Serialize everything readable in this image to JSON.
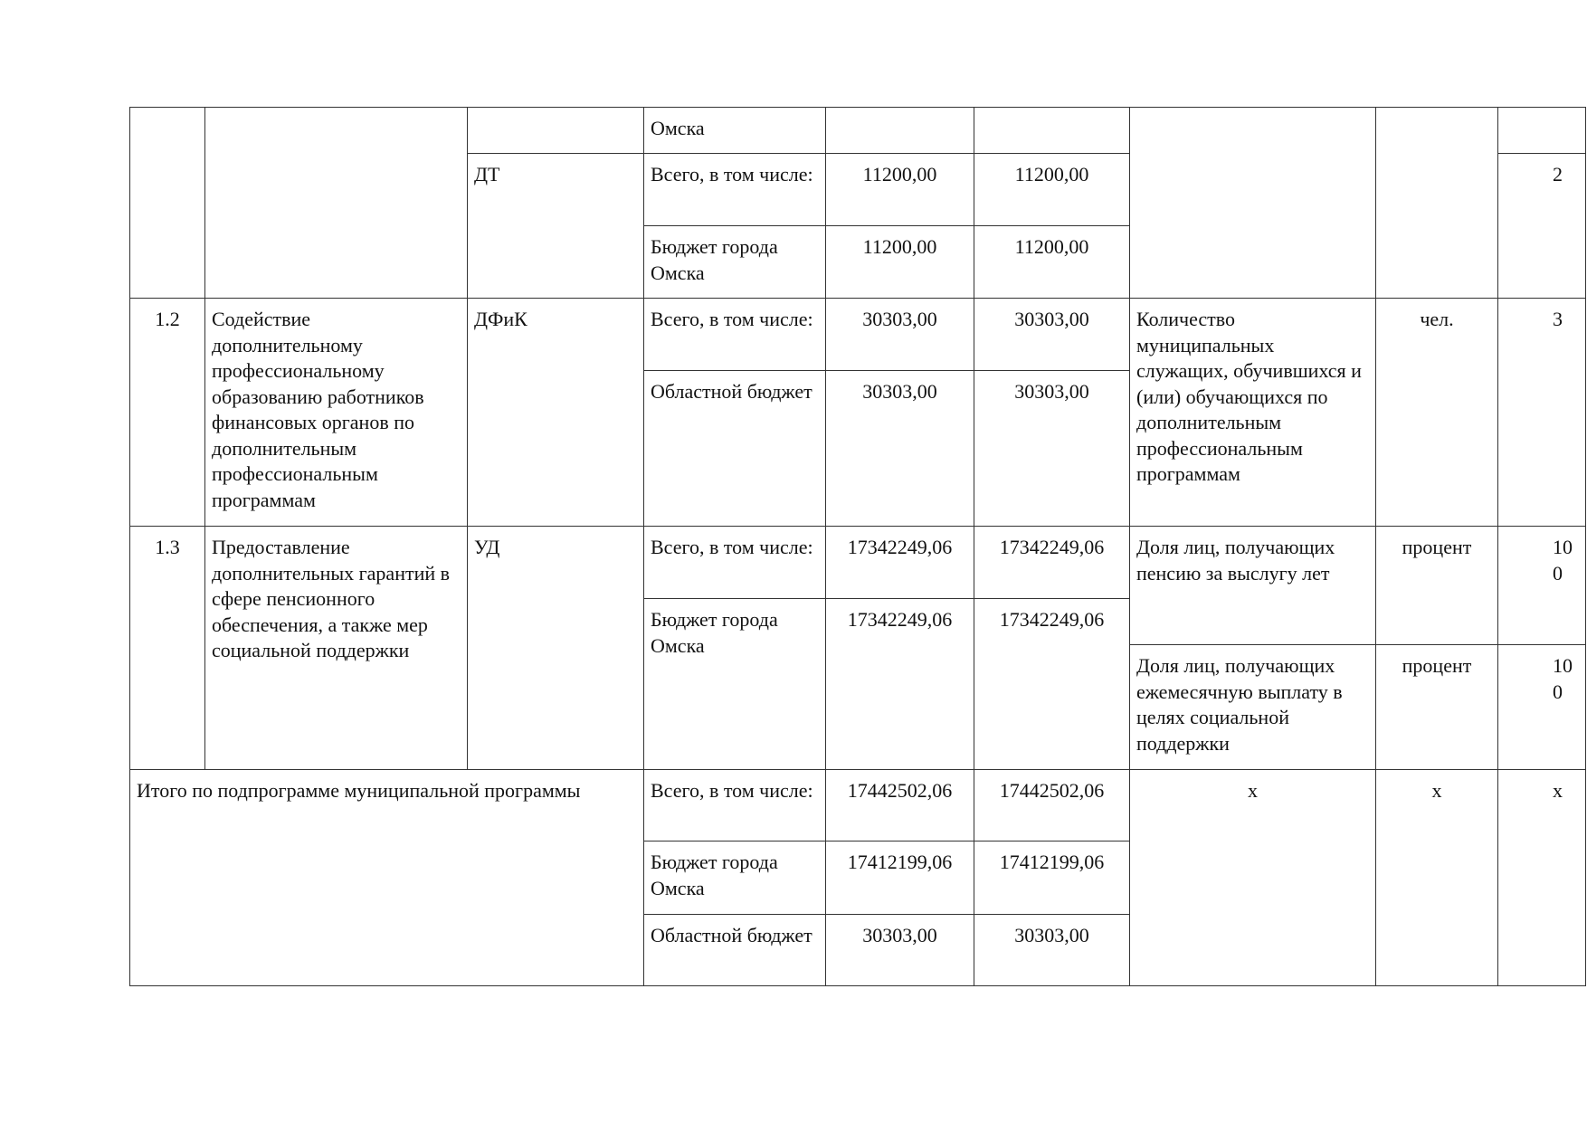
{
  "top": {
    "source_cont": "Омска",
    "executor": "ДТ",
    "rows": [
      {
        "source": "Всего, в том числе:",
        "v1": "11200,00",
        "v2": "11200,00"
      },
      {
        "source": "Бюджет города Омска",
        "v1": "11200,00",
        "v2": "11200,00"
      }
    ],
    "indicator_value": "2"
  },
  "item_1_2": {
    "num": "1.2",
    "name": "Содействие дополнительному профессиональному образованию работников финансовых органов по дополнительным профессиональным программам",
    "executor": "ДФиК",
    "rows": [
      {
        "source": "Всего, в том числе:",
        "v1": "30303,00",
        "v2": "30303,00"
      },
      {
        "source": "Областной бюджет",
        "v1": "30303,00",
        "v2": "30303,00"
      }
    ],
    "indicator": "Количество муниципальных служащих, обучившихся и (или) обучающихся по дополнительным профессиональным программам",
    "unit": "чел.",
    "value": "3"
  },
  "item_1_3": {
    "num": "1.3",
    "name": "Предоставление дополнительных гарантий в сфере пенсионного обеспечения, а также мер социальной поддержки",
    "executor": "УД",
    "rows": [
      {
        "source": "Всего, в том числе:",
        "v1": "17342249,06",
        "v2": "17342249,06"
      },
      {
        "source": "Бюджет города Омска",
        "v1": "17342249,06",
        "v2": "17342249,06"
      }
    ],
    "indicators": [
      {
        "name": "Доля лиц, получающих пенсию за выслугу лет",
        "unit": "процент",
        "value": "100"
      },
      {
        "name": "Доля лиц, получающих ежемесячную выплату в целях социальной поддержки",
        "unit": "процент",
        "value": "100"
      }
    ]
  },
  "total": {
    "label": "Итого по подпрограмме муниципальной программы",
    "rows": [
      {
        "source": "Всего, в том числе:",
        "v1": "17442502,06",
        "v2": "17442502,06"
      },
      {
        "source": "Бюджет города Омска",
        "v1": "17412199,06",
        "v2": "17412199,06"
      },
      {
        "source": "Областной бюджет",
        "v1": "30303,00",
        "v2": "30303,00"
      }
    ],
    "indicator": "x",
    "unit": "x",
    "value": "x"
  }
}
